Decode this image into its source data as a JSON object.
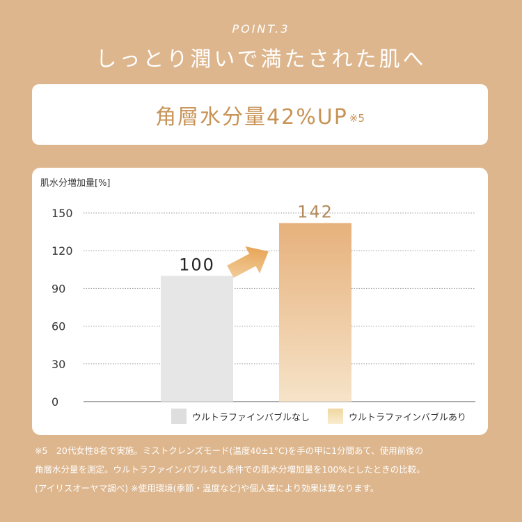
{
  "header": {
    "point_label": "POINT.3",
    "headline": "しっとり潤いで満たされた肌へ"
  },
  "highlight": {
    "text": "角層水分量42%UP",
    "note": "※5"
  },
  "chart_data": {
    "type": "bar",
    "ylabel": "肌水分増加量[%]",
    "ylim": [
      0,
      150
    ],
    "yticks": [
      0,
      30,
      60,
      90,
      120,
      150
    ],
    "grid": true,
    "legend_position": "bottom",
    "categories": [
      "ウルトラファインバブルなし",
      "ウルトラファインバブルあり"
    ],
    "values": [
      100,
      142
    ],
    "data_labels": [
      "100",
      "142"
    ],
    "colors": [
      "#e6e6e6",
      "#e9bf8a"
    ],
    "annotation": "arrow from 100 to 142"
  },
  "footnote": {
    "line1": "※5　20代女性8名で実施。ミストクレンズモード(温度40±1°C)を手の甲に1分間あて、使用前後の",
    "line2": "角層水分量を測定。ウルトラファインバブルなし条件での肌水分増加量を100%としたときの比較。",
    "line3": "(アイリスオーヤマ調べ)  ※使用環境(季節・温度など)や個人差により効果は異なります。"
  }
}
